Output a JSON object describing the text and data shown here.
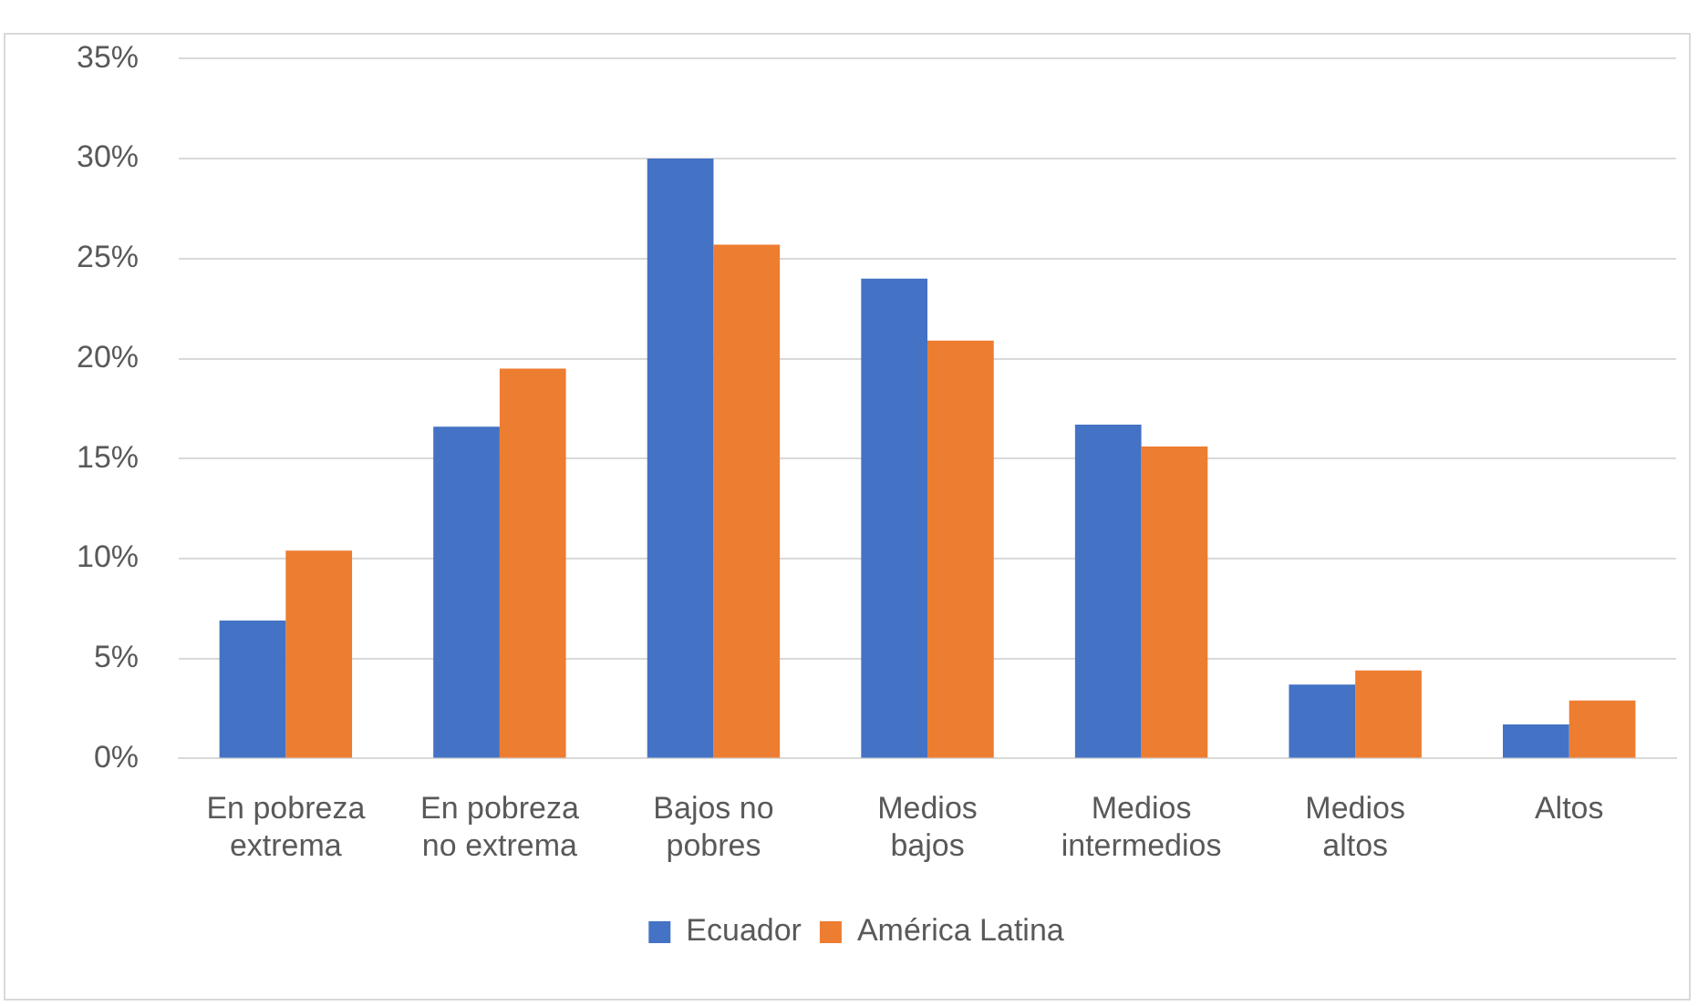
{
  "chart_data": {
    "type": "bar",
    "categories": [
      "En pobreza extrema",
      "En pobreza no extrema",
      "Bajos no pobres",
      "Medios bajos",
      "Medios intermedios",
      "Medios altos",
      "Altos"
    ],
    "series": [
      {
        "name": "Ecuador",
        "color": "#4472c4",
        "values": [
          6.9,
          16.6,
          30.0,
          24.0,
          16.7,
          3.7,
          1.7
        ]
      },
      {
        "name": "América Latina",
        "color": "#ed7d31",
        "values": [
          10.4,
          19.5,
          25.7,
          20.9,
          15.6,
          4.4,
          2.9
        ]
      }
    ],
    "ylim": [
      0,
      35
    ],
    "yticks": [
      {
        "value": 0,
        "label": "0%"
      },
      {
        "value": 5,
        "label": "5%"
      },
      {
        "value": 10,
        "label": "10%"
      },
      {
        "value": 15,
        "label": "15%"
      },
      {
        "value": 20,
        "label": "20%"
      },
      {
        "value": 25,
        "label": "25%"
      },
      {
        "value": 30,
        "label": "30%"
      },
      {
        "value": 35,
        "label": "35%"
      }
    ],
    "grid": "y",
    "legend": "bottom"
  }
}
